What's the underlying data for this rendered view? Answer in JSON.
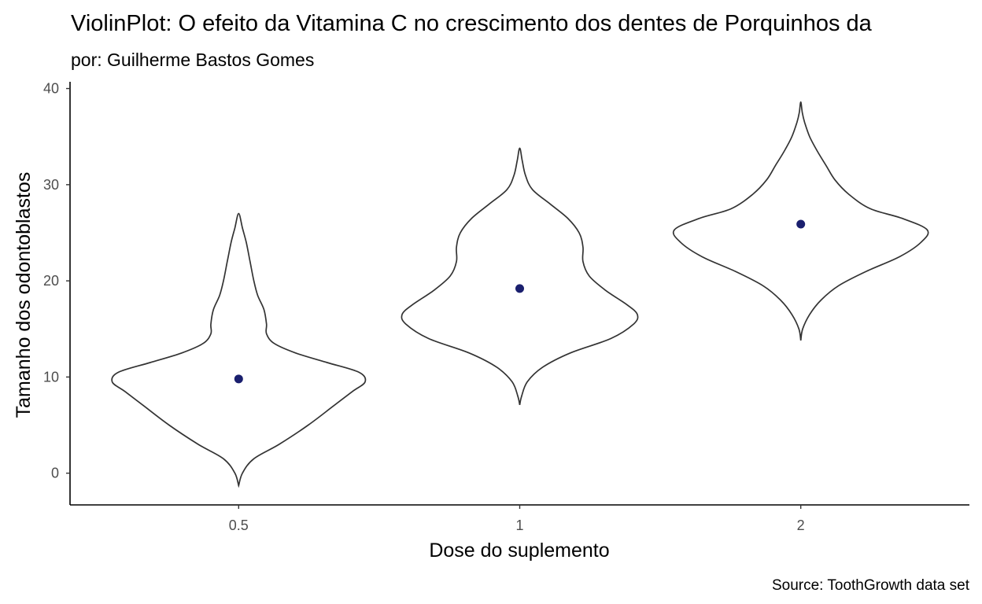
{
  "chart_data": {
    "type": "violin",
    "title": "ViolinPlot: O efeito da Vitamina C no crescimento dos dentes de Porquinhos da",
    "subtitle": "por: Guilherme Bastos Gomes",
    "caption": "Source: ToothGrowth data set",
    "xlabel": "Dose do suplemento",
    "ylabel": "Tamanho dos odontoblastos",
    "categories": [
      "0.5",
      "1",
      "2"
    ],
    "y_ticks": [
      0,
      10,
      20,
      30,
      40
    ],
    "ylim": [
      -3.3,
      40.7
    ],
    "grid": false,
    "means": [
      9.8,
      19.2,
      25.9
    ],
    "violin_range": [
      [
        -1.3,
        27.0
      ],
      [
        7.1,
        33.8
      ],
      [
        13.8,
        38.6
      ]
    ],
    "violin_shapes": [
      [
        [
          -1.3,
          0
        ],
        [
          0,
          0.03
        ],
        [
          1.5,
          0.12
        ],
        [
          3,
          0.32
        ],
        [
          5,
          0.55
        ],
        [
          7,
          0.75
        ],
        [
          8.5,
          0.9
        ],
        [
          9.5,
          1.0
        ],
        [
          10.5,
          0.95
        ],
        [
          11.5,
          0.7
        ],
        [
          12.5,
          0.45
        ],
        [
          13.5,
          0.28
        ],
        [
          14.5,
          0.22
        ],
        [
          15.5,
          0.22
        ],
        [
          17,
          0.2
        ],
        [
          18.5,
          0.15
        ],
        [
          20,
          0.12
        ],
        [
          22,
          0.09
        ],
        [
          24,
          0.06
        ],
        [
          25.5,
          0.03
        ],
        [
          27,
          0
        ]
      ],
      [
        [
          7.1,
          0
        ],
        [
          8,
          0.015
        ],
        [
          9.5,
          0.06
        ],
        [
          11,
          0.18
        ],
        [
          12.5,
          0.4
        ],
        [
          14,
          0.72
        ],
        [
          15.5,
          0.9
        ],
        [
          16.5,
          0.93
        ],
        [
          17.5,
          0.85
        ],
        [
          19,
          0.68
        ],
        [
          20.5,
          0.55
        ],
        [
          22,
          0.5
        ],
        [
          23.5,
          0.5
        ],
        [
          25,
          0.47
        ],
        [
          26.5,
          0.38
        ],
        [
          28,
          0.24
        ],
        [
          29.5,
          0.1
        ],
        [
          31,
          0.045
        ],
        [
          32.5,
          0.02
        ],
        [
          33.8,
          0
        ]
      ],
      [
        [
          13.8,
          0
        ],
        [
          15,
          0.015
        ],
        [
          16.5,
          0.07
        ],
        [
          18,
          0.16
        ],
        [
          19.5,
          0.3
        ],
        [
          21,
          0.52
        ],
        [
          22.5,
          0.78
        ],
        [
          24,
          0.95
        ],
        [
          25.3,
          1.0
        ],
        [
          26.5,
          0.8
        ],
        [
          27.5,
          0.55
        ],
        [
          29,
          0.38
        ],
        [
          30.5,
          0.27
        ],
        [
          32,
          0.2
        ],
        [
          33.5,
          0.13
        ],
        [
          35,
          0.07
        ],
        [
          36.5,
          0.03
        ],
        [
          37.5,
          0.012
        ],
        [
          38.6,
          0
        ]
      ]
    ]
  },
  "colors": {
    "mean_point": "#1a1f6e",
    "violin_outline": "#333333",
    "axis": "#000000"
  }
}
